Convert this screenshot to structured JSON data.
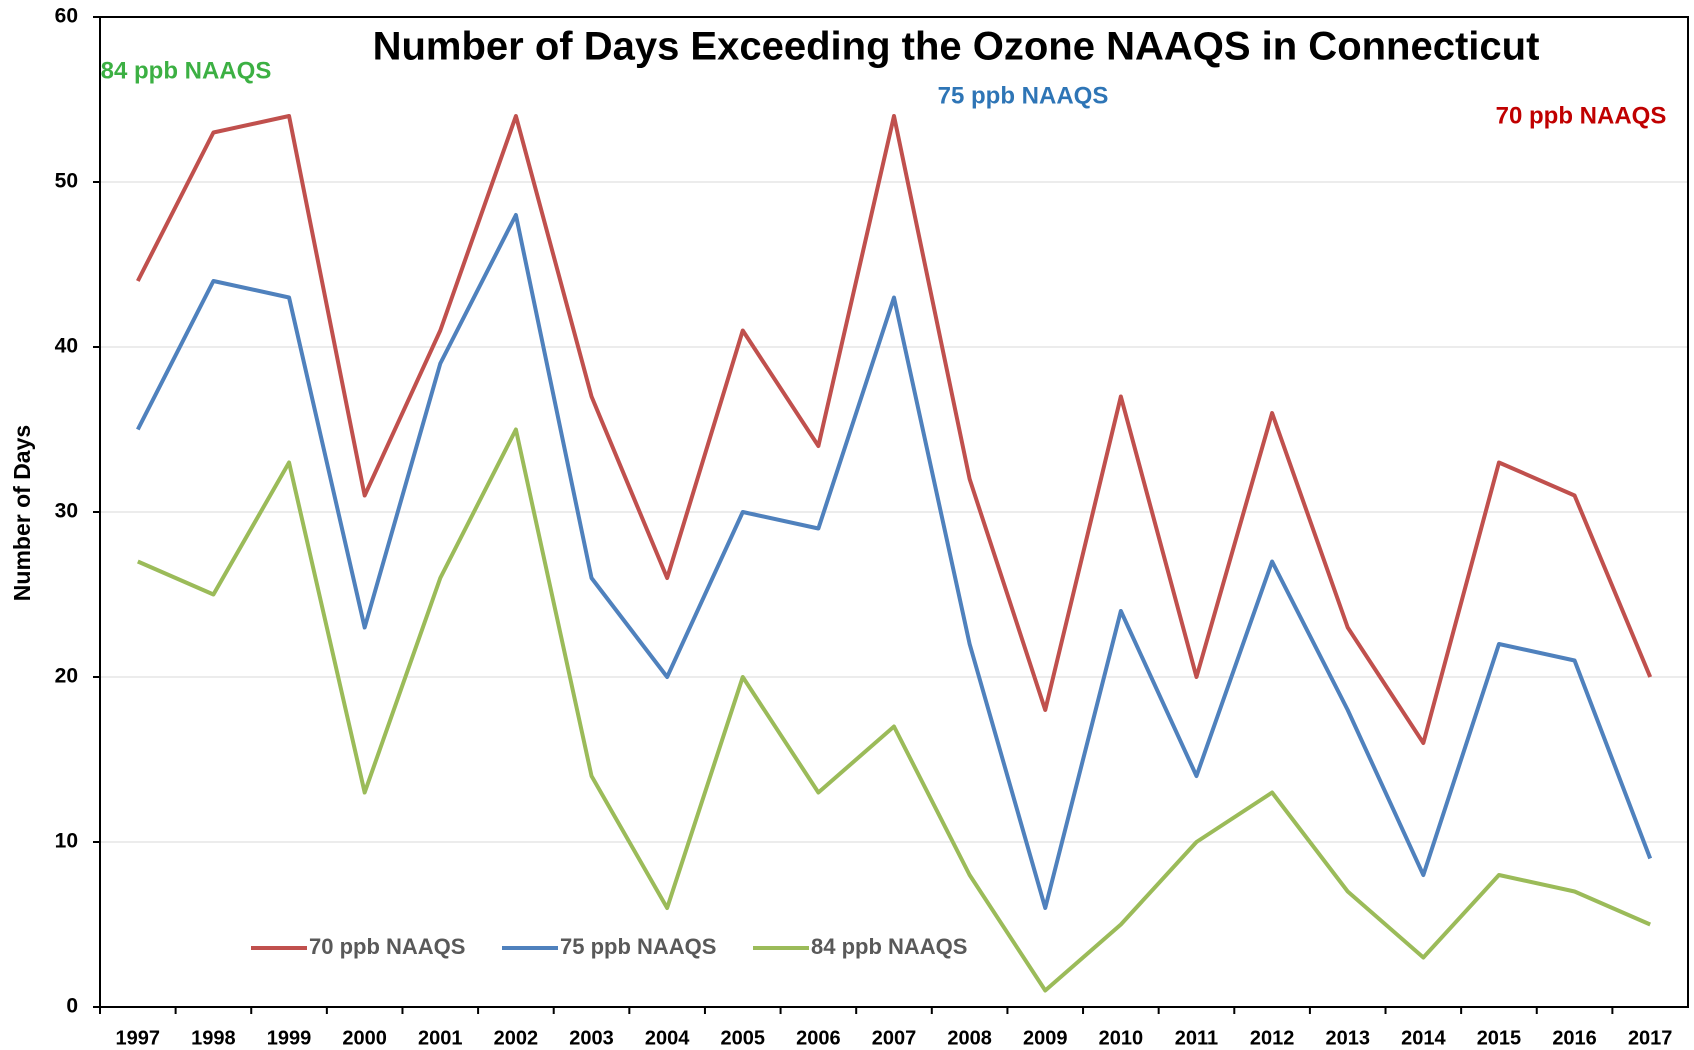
{
  "chart_data": {
    "type": "line",
    "title": "Number of Days Exceeding the Ozone NAAQS in Connecticut",
    "y_label": "Number of Days",
    "categories": [
      "1997",
      "1998",
      "1999",
      "2000",
      "2001",
      "2002",
      "2003",
      "2004",
      "2005",
      "2006",
      "2007",
      "2008",
      "2009",
      "2010",
      "2011",
      "2012",
      "2013",
      "2014",
      "2015",
      "2016",
      "2017"
    ],
    "series": [
      {
        "name": "70 ppb NAAQS",
        "color": "#c0504d",
        "values": [
          44,
          53,
          54,
          31,
          41,
          54,
          37,
          26,
          41,
          34,
          54,
          32,
          18,
          37,
          20,
          36,
          23,
          16,
          33,
          31,
          20
        ]
      },
      {
        "name": "75 ppb NAAQS",
        "color": "#4f81bd",
        "values": [
          35,
          44,
          43,
          23,
          39,
          48,
          26,
          20,
          30,
          29,
          43,
          22,
          6,
          24,
          14,
          27,
          18,
          8,
          22,
          21,
          9
        ]
      },
      {
        "name": "84 ppb NAAQS",
        "color": "#9bbb59",
        "values": [
          27,
          25,
          33,
          13,
          26,
          35,
          14,
          6,
          20,
          13,
          17,
          8,
          1,
          5,
          10,
          13,
          7,
          3,
          8,
          7,
          5
        ]
      }
    ],
    "annotations": [
      {
        "text": "84 ppb NAAQS",
        "color": "#3cb043"
      },
      {
        "text": "75 ppb NAAQS",
        "color": "#2e75b6"
      },
      {
        "text": "70 ppb NAAQS",
        "color": "#c00000"
      }
    ],
    "ylim": [
      0,
      60
    ],
    "yticks": [
      0,
      10,
      20,
      30,
      40,
      50,
      60
    ],
    "grid": true,
    "legend": "bottom-left"
  }
}
